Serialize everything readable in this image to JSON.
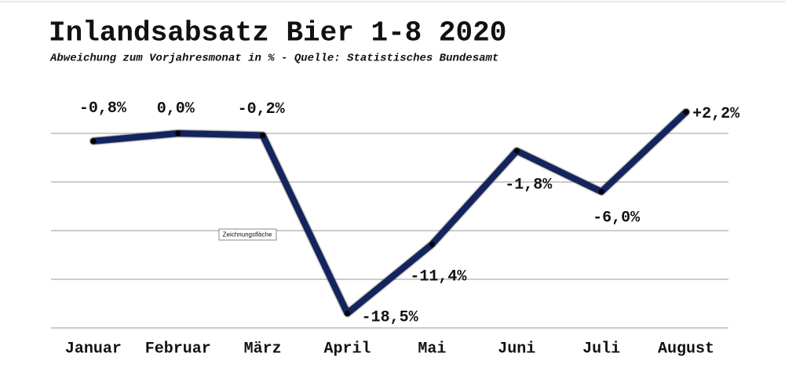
{
  "chart_data": {
    "type": "line",
    "title": "Inlandsabsatz Bier 1-8 2020",
    "subtitle": "Abweichung zum Vorjahresmonat in % - Quelle: Statistisches Bundesamt",
    "categories": [
      "Januar",
      "Februar",
      "März",
      "April",
      "Mai",
      "Juni",
      "Juli",
      "August"
    ],
    "series": [
      {
        "name": "Inlandsabsatz Bier",
        "color": "#14245e",
        "values": [
          -0.8,
          0.0,
          -0.2,
          -18.5,
          -11.4,
          -1.8,
          -6.0,
          2.2
        ],
        "value_labels": [
          "-0,8%",
          "0,0%",
          "-0,2%",
          "-18,5%",
          "-11,4%",
          "-1,8%",
          "-6,0%",
          "+2,2%"
        ]
      }
    ],
    "ylim": [
      -20,
      5
    ],
    "yticks": [
      -20,
      -15,
      -10,
      -5,
      0
    ],
    "grid": true,
    "tooltip": "Zeichnungsfläche"
  }
}
